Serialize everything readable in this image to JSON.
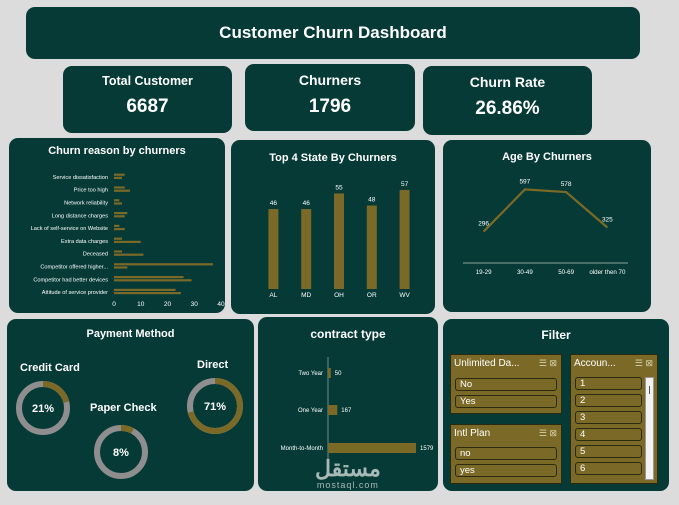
{
  "dashboard": {
    "title": "Customer Churn Dashboard"
  },
  "kpis": [
    {
      "label": "Total Customer",
      "value": "6687"
    },
    {
      "label": "Churners",
      "value": "1796"
    },
    {
      "label": "Churn Rate",
      "value": "26.86%"
    }
  ],
  "churn_reason": {
    "title": "Churn reason by churners"
  },
  "top_states": {
    "title": "Top 4 State By Churners"
  },
  "age": {
    "title": "Age By Churners"
  },
  "payment": {
    "title": "Payment Method",
    "items": [
      {
        "label": "Credit Card",
        "value": "21%"
      },
      {
        "label": "Paper Check",
        "value": "8%"
      },
      {
        "label": "Direct",
        "value": "71%"
      }
    ]
  },
  "contract": {
    "title": "contract type"
  },
  "filter": {
    "title": "Filter",
    "slicers": [
      {
        "header": "Unlimited Da...",
        "items": [
          "No",
          "Yes"
        ]
      },
      {
        "header": "Intl Plan",
        "items": [
          "no",
          "yes"
        ]
      },
      {
        "header": "Accoun...",
        "items": [
          "1",
          "2",
          "3",
          "4",
          "5",
          "6"
        ]
      }
    ]
  },
  "watermark": {
    "arabic": "مستقل",
    "latin": "mostaql.com"
  },
  "colors": {
    "panel": "#063a36",
    "accent": "#7b6a27",
    "ring_track": "#8e8e8e",
    "page": "#dcdcdc"
  },
  "chart_data": [
    {
      "type": "bar",
      "title": "Churn reason by churners",
      "orientation": "horizontal",
      "categories": [
        "Attitude of service provider",
        "Competitor had better devices",
        "Competitor offered higher...",
        "Deceased",
        "Extra data charges",
        "Lack of self-service on Website",
        "Long distance charges",
        "Network reliability",
        "Price too high",
        "Service dissatisfaction"
      ],
      "series": [
        {
          "values": [
            23,
            26,
            37,
            3,
            3,
            2,
            5,
            2,
            4,
            4
          ]
        },
        {
          "values": [
            25,
            29,
            5,
            11,
            10,
            4,
            4,
            3,
            6,
            3
          ]
        }
      ],
      "xticks": [
        0,
        10,
        20,
        30,
        40
      ],
      "xlim": [
        0,
        40
      ]
    },
    {
      "type": "bar",
      "title": "Top 4 State By Churners",
      "categories": [
        "AL",
        "MD",
        "OH",
        "OR",
        "WV"
      ],
      "values": [
        46,
        46,
        55,
        48,
        57
      ],
      "ylim": [
        0,
        65
      ]
    },
    {
      "type": "line",
      "title": "Age By Churners",
      "categories": [
        "19-29",
        "30-49",
        "50-69",
        "older then 70"
      ],
      "values": [
        296,
        597,
        578,
        325
      ],
      "ylim": [
        150,
        700
      ]
    },
    {
      "type": "pie",
      "title": "Payment Method",
      "categories": [
        "Credit Card",
        "Paper Check",
        "Direct"
      ],
      "values": [
        21,
        8,
        71
      ]
    },
    {
      "type": "bar",
      "title": "contract type",
      "orientation": "horizontal",
      "categories": [
        "Two Year",
        "One Year",
        "Month-to-Month"
      ],
      "values": [
        50,
        167,
        1579
      ],
      "xlim": [
        0,
        1650
      ]
    }
  ]
}
